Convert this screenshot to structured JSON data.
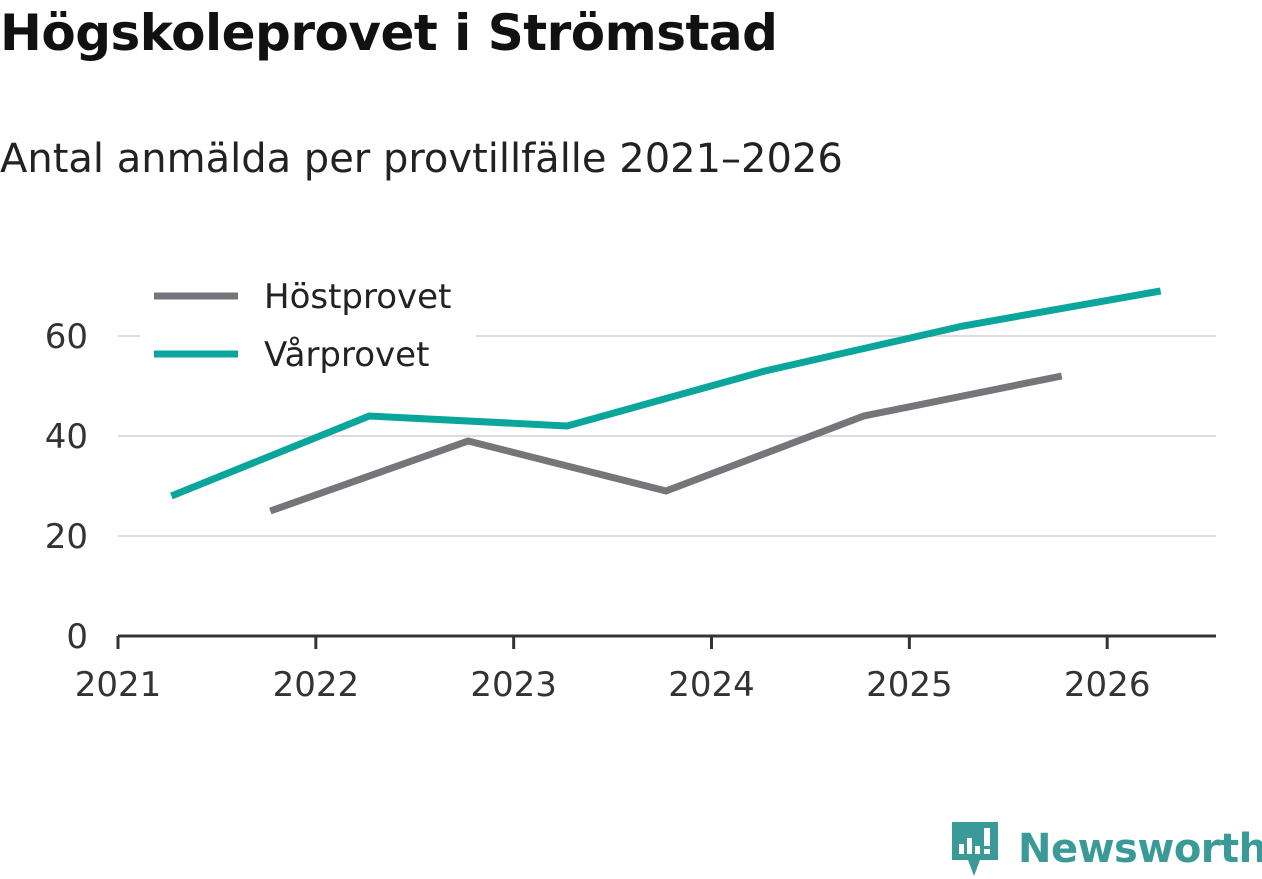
{
  "title": "Högskoleprovet i Strömstad",
  "subtitle": "Antal anmälda per provtillfälle 2021–2026",
  "colors": {
    "host": "#75757a",
    "var": "#0aa59b",
    "grid": "#dddddd",
    "axis": "#333333",
    "brand": "#3a9a97"
  },
  "chart_data": {
    "type": "line",
    "title": "Högskoleprovet i Strömstad",
    "subtitle": "Antal anmälda per provtillfälle 2021–2026",
    "xlabel": "",
    "ylabel": "",
    "xlim": [
      2021,
      2026.55
    ],
    "ylim": [
      0,
      72
    ],
    "grid": true,
    "legend_position": "top-left",
    "x_ticks": [
      2021,
      2022,
      2023,
      2024,
      2025,
      2026
    ],
    "y_ticks": [
      0,
      20,
      40,
      60
    ],
    "series": [
      {
        "name": "Höstprovet",
        "color": "#75757a",
        "x": [
          2021.77,
          2022.77,
          2023.77,
          2024.77,
          2025.77
        ],
        "y": [
          25,
          39,
          29,
          44,
          52
        ]
      },
      {
        "name": "Vårprovet",
        "color": "#0aa59b",
        "x": [
          2021.27,
          2022.27,
          2023.27,
          2024.27,
          2025.27,
          2026.27
        ],
        "y": [
          28,
          44,
          42,
          53,
          62,
          69
        ]
      }
    ]
  },
  "brand": {
    "name": "Newsworthy",
    "icon": "newsworthy-chart-icon"
  }
}
